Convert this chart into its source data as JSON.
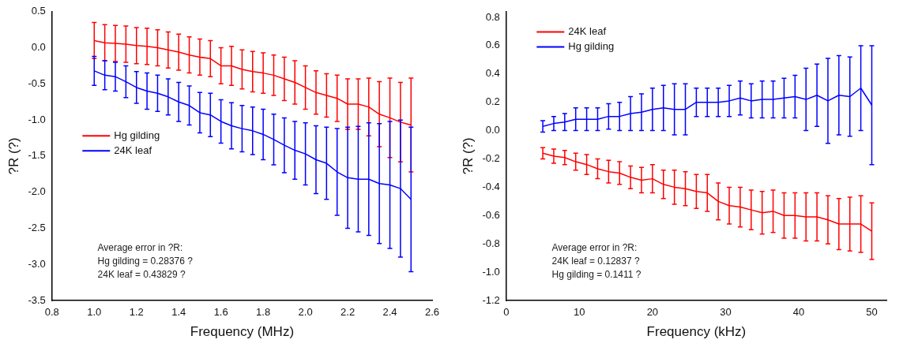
{
  "chart_data": [
    {
      "type": "line",
      "xlabel": "Frequency (MHz)",
      "ylabel": "?R (?)",
      "x": [
        1.0,
        1.05,
        1.1,
        1.15,
        1.2,
        1.25,
        1.3,
        1.35,
        1.4,
        1.45,
        1.5,
        1.55,
        1.6,
        1.65,
        1.7,
        1.75,
        1.8,
        1.85,
        1.9,
        1.95,
        2.0,
        2.05,
        2.1,
        2.15,
        2.2,
        2.25,
        2.3,
        2.35,
        2.4,
        2.45,
        2.5
      ],
      "series": [
        {
          "name": "Hg gilding",
          "color": "#ff0000",
          "values": [
            0.1,
            0.07,
            0.06,
            0.05,
            0.03,
            0.02,
            0.0,
            -0.03,
            -0.06,
            -0.1,
            -0.13,
            -0.15,
            -0.25,
            -0.25,
            -0.3,
            -0.33,
            -0.35,
            -0.38,
            -0.43,
            -0.48,
            -0.55,
            -0.62,
            -0.66,
            -0.7,
            -0.78,
            -0.78,
            -0.82,
            -0.92,
            -0.97,
            -1.03,
            -1.07
          ],
          "errors": [
            0.25,
            0.25,
            0.25,
            0.25,
            0.25,
            0.25,
            0.25,
            0.25,
            0.25,
            0.25,
            0.25,
            0.25,
            0.25,
            0.27,
            0.27,
            0.28,
            0.28,
            0.28,
            0.3,
            0.3,
            0.3,
            0.3,
            0.3,
            0.32,
            0.35,
            0.35,
            0.4,
            0.45,
            0.55,
            0.55,
            0.65
          ]
        },
        {
          "name": "24K leaf",
          "color": "#0000ff",
          "values": [
            -0.32,
            -0.38,
            -0.4,
            -0.47,
            -0.55,
            -0.6,
            -0.63,
            -0.68,
            -0.75,
            -0.8,
            -0.9,
            -0.93,
            -1.02,
            -1.08,
            -1.12,
            -1.15,
            -1.2,
            -1.27,
            -1.35,
            -1.42,
            -1.47,
            -1.55,
            -1.6,
            -1.72,
            -1.8,
            -1.82,
            -1.82,
            -1.88,
            -1.9,
            -1.95,
            -2.1
          ],
          "errors": [
            0.2,
            0.2,
            0.2,
            0.22,
            0.22,
            0.25,
            0.25,
            0.25,
            0.27,
            0.27,
            0.28,
            0.3,
            0.3,
            0.32,
            0.32,
            0.33,
            0.35,
            0.35,
            0.38,
            0.4,
            0.43,
            0.47,
            0.5,
            0.6,
            0.7,
            0.73,
            0.78,
            0.83,
            0.88,
            0.95,
            1.0
          ]
        }
      ],
      "xlim": [
        0.8,
        2.6
      ],
      "xticks": [
        {
          "value": 0.8,
          "label": "0.8"
        },
        {
          "value": 1,
          "label": "1.0"
        },
        {
          "value": 1.2,
          "label": "1.2"
        },
        {
          "value": 1.4,
          "label": "1.4"
        },
        {
          "value": 1.6,
          "label": "1.6"
        },
        {
          "value": 1.8,
          "label": "1.8"
        },
        {
          "value": 2,
          "label": "2.0"
        },
        {
          "value": 2.2,
          "label": "2.2"
        },
        {
          "value": 2.4,
          "label": "2.4"
        },
        {
          "value": 2.6,
          "label": "2.6"
        }
      ],
      "ylim": [
        -3.5,
        0.5
      ],
      "yticks": [
        {
          "value": -3.5,
          "label": "-3.5"
        },
        {
          "value": -3,
          "label": "-3.0"
        },
        {
          "value": -2.5,
          "label": "-2.5"
        },
        {
          "value": -2,
          "label": "-2.0"
        },
        {
          "value": -1.5,
          "label": "-1.5"
        },
        {
          "value": -1,
          "label": "-1.0"
        },
        {
          "value": -0.5,
          "label": "-0.5"
        },
        {
          "value": 0,
          "label": "0.0"
        },
        {
          "value": 0.5,
          "label": "0.5"
        }
      ],
      "legend": "left",
      "grid": false,
      "marker": "none",
      "annotations": [
        "Average error in ?R:",
        "Hg gilding = 0.28376 ?",
        "24K leaf = 0.43829 ?"
      ]
    },
    {
      "type": "line",
      "xlabel": "Frequency (kHz)",
      "ylabel": "?R (?)",
      "x": [
        5,
        6.5,
        8,
        9.5,
        11,
        12.5,
        14,
        15.5,
        17,
        18.5,
        20,
        21.5,
        23,
        24.5,
        26,
        27.5,
        29,
        30.5,
        32,
        33.5,
        35,
        36.5,
        38,
        39.5,
        41,
        42.5,
        44,
        45.5,
        47,
        48.5,
        50
      ],
      "series": [
        {
          "name": "24K leaf",
          "color": "#ff0000",
          "values": [
            -0.16,
            -0.18,
            -0.19,
            -0.22,
            -0.24,
            -0.27,
            -0.29,
            -0.3,
            -0.33,
            -0.35,
            -0.34,
            -0.38,
            -0.4,
            -0.41,
            -0.43,
            -0.44,
            -0.5,
            -0.53,
            -0.54,
            -0.56,
            -0.58,
            -0.57,
            -0.6,
            -0.6,
            -0.61,
            -0.61,
            -0.63,
            -0.66,
            -0.66,
            -0.66,
            -0.71
          ],
          "errors": [
            0.04,
            0.05,
            0.05,
            0.06,
            0.07,
            0.07,
            0.08,
            0.08,
            0.08,
            0.09,
            0.1,
            0.1,
            0.12,
            0.12,
            0.12,
            0.13,
            0.13,
            0.13,
            0.14,
            0.14,
            0.15,
            0.15,
            0.16,
            0.16,
            0.17,
            0.17,
            0.17,
            0.18,
            0.19,
            0.2,
            0.2
          ]
        },
        {
          "name": "Hg gilding",
          "color": "#0000ff",
          "values": [
            0.03,
            0.05,
            0.06,
            0.08,
            0.08,
            0.08,
            0.1,
            0.1,
            0.12,
            0.13,
            0.15,
            0.16,
            0.15,
            0.15,
            0.2,
            0.2,
            0.2,
            0.21,
            0.23,
            0.21,
            0.22,
            0.22,
            0.23,
            0.24,
            0.22,
            0.25,
            0.21,
            0.25,
            0.24,
            0.3,
            0.18
          ],
          "errors": [
            0.04,
            0.05,
            0.06,
            0.08,
            0.08,
            0.08,
            0.09,
            0.1,
            0.12,
            0.13,
            0.15,
            0.16,
            0.18,
            0.18,
            0.1,
            0.1,
            0.1,
            0.11,
            0.12,
            0.12,
            0.13,
            0.13,
            0.14,
            0.15,
            0.22,
            0.22,
            0.3,
            0.28,
            0.28,
            0.3,
            0.42
          ]
        }
      ],
      "xlim": [
        0,
        52
      ],
      "xticks": [
        0,
        10,
        20,
        30,
        40,
        50
      ],
      "ylim": [
        -1.2,
        0.84
      ],
      "yticks": [
        {
          "value": -1.2,
          "label": "-1.2"
        },
        {
          "value": -1,
          "label": "-1.0"
        },
        {
          "value": -0.8,
          "label": "-0.8"
        },
        {
          "value": -0.6,
          "label": "-0.6"
        },
        {
          "value": -0.4,
          "label": "-0.4"
        },
        {
          "value": -0.2,
          "label": "-0.2"
        },
        {
          "value": 0,
          "label": "0.0"
        },
        {
          "value": 0.2,
          "label": "0.2"
        },
        {
          "value": 0.4,
          "label": "0.4"
        },
        {
          "value": 0.6,
          "label": "0.6"
        },
        {
          "value": 0.8,
          "label": "0.8"
        }
      ],
      "legend": "top left",
      "grid": false,
      "marker": "none",
      "annotations": [
        "Average error in ?R:",
        "24K leaf = 0.12837 ?",
        "Hg gilding = 0.1411 ?"
      ]
    }
  ]
}
